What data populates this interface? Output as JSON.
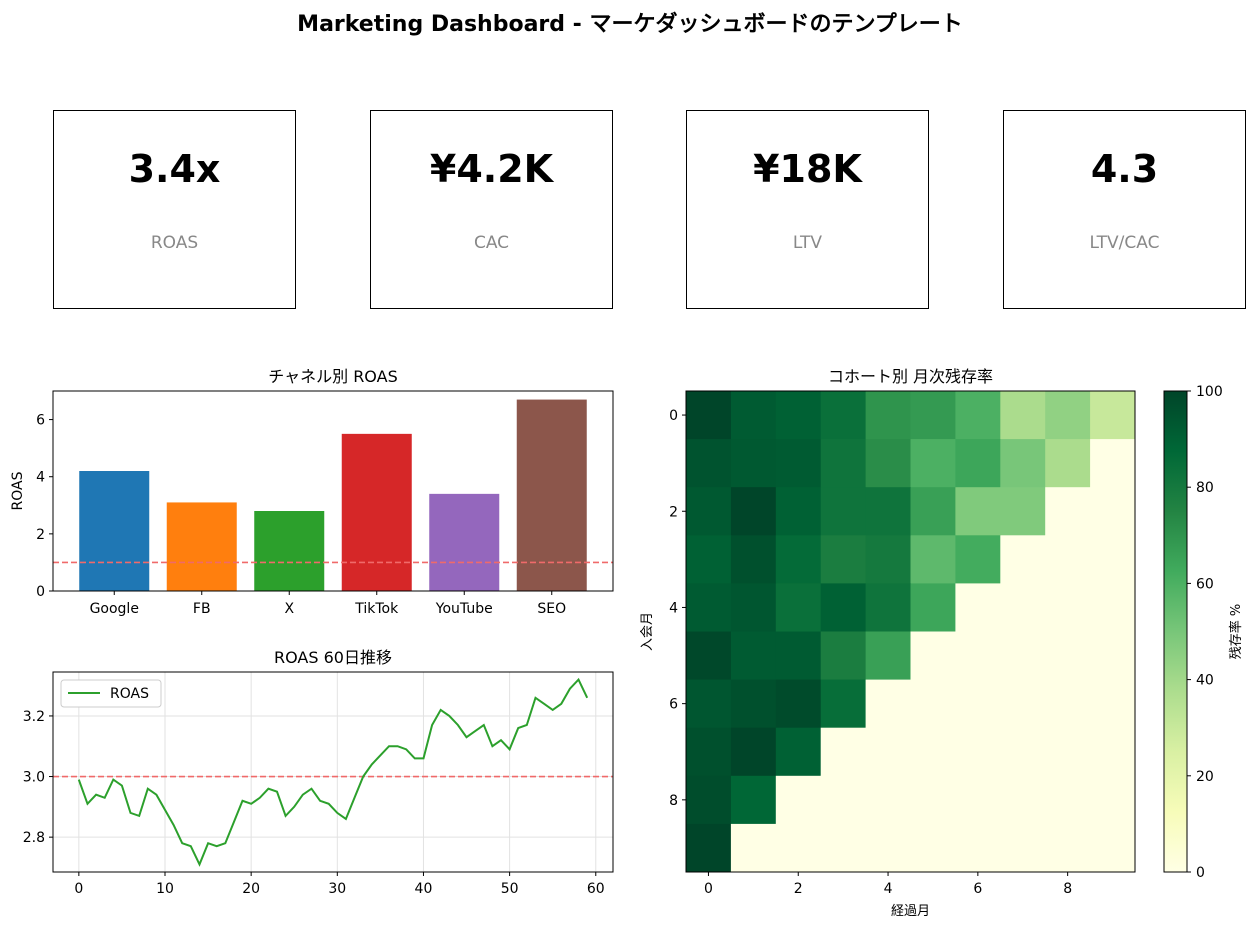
{
  "title": "Marketing Dashboard - マーケダッシュボードのテンプレート",
  "kpis": [
    {
      "value": "3.4x",
      "label": "ROAS"
    },
    {
      "value": "¥4.2K",
      "label": "CAC"
    },
    {
      "value": "¥18K",
      "label": "LTV"
    },
    {
      "value": "4.3",
      "label": "LTV/CAC"
    }
  ],
  "chart_data": [
    {
      "type": "bar",
      "title": "チャネル別 ROAS",
      "xlabel": "",
      "ylabel": "ROAS",
      "categories": [
        "Google",
        "FB",
        "X",
        "TikTok",
        "YouTube",
        "SEO"
      ],
      "values": [
        4.2,
        3.1,
        2.8,
        5.5,
        3.4,
        6.7
      ],
      "colors": [
        "#1f77b4",
        "#ff7f0e",
        "#2ca02c",
        "#d62728",
        "#9467bd",
        "#8c564b"
      ],
      "ylim": [
        0,
        7
      ],
      "yticks": [
        0,
        2,
        4,
        6
      ],
      "reference_line": {
        "y": 1.0,
        "color": "#f06a6a",
        "style": "dashed"
      }
    },
    {
      "type": "line",
      "title": "ROAS 60日推移",
      "xlabel": "",
      "ylabel": "",
      "series": [
        {
          "name": "ROAS",
          "color": "#2ca02c",
          "values": [
            2.99,
            2.91,
            2.94,
            2.93,
            2.99,
            2.97,
            2.88,
            2.87,
            2.96,
            2.94,
            2.89,
            2.84,
            2.78,
            2.77,
            2.71,
            2.78,
            2.77,
            2.78,
            2.85,
            2.92,
            2.91,
            2.93,
            2.96,
            2.95,
            2.87,
            2.9,
            2.94,
            2.96,
            2.92,
            2.91,
            2.88,
            2.86,
            2.93,
            3.0,
            3.04,
            3.07,
            3.1,
            3.1,
            3.09,
            3.06,
            3.06,
            3.17,
            3.22,
            3.2,
            3.17,
            3.13,
            3.15,
            3.17,
            3.1,
            3.12,
            3.09,
            3.16,
            3.17,
            3.26,
            3.24,
            3.22,
            3.24,
            3.29,
            3.32,
            3.26
          ]
        }
      ],
      "x_start": 0,
      "xlim": [
        -3,
        62
      ],
      "ylim": [
        2.685,
        3.345
      ],
      "xticks": [
        0,
        10,
        20,
        30,
        40,
        50,
        60
      ],
      "yticks": [
        2.8,
        3.0,
        3.2
      ],
      "ytick_format": "0.0",
      "grid": true,
      "legend": "top-left",
      "reference_line": {
        "y": 3.0,
        "color": "#f06a6a",
        "style": "dashed"
      }
    },
    {
      "type": "heatmap",
      "title": "コホート別 月次残存率",
      "xlabel": "経過月",
      "ylabel": "入会月",
      "colorbar_label": "残存率 %",
      "colorbar_ticks": [
        0,
        20,
        40,
        60,
        80,
        100
      ],
      "vmin": 0,
      "vmax": 100,
      "xticks": [
        0,
        2,
        4,
        6,
        8
      ],
      "yticks": [
        0,
        2,
        4,
        6,
        8
      ],
      "colormap": "YlGn",
      "matrix": [
        [
          100,
          92,
          90,
          84,
          70,
          68,
          60,
          38,
          44,
          30
        ],
        [
          95,
          93,
          92,
          82,
          72,
          60,
          64,
          50,
          38,
          0
        ],
        [
          93,
          100,
          90,
          82,
          82,
          66,
          48,
          48,
          0,
          0
        ],
        [
          90,
          96,
          86,
          78,
          80,
          56,
          62,
          0,
          0,
          0
        ],
        [
          92,
          94,
          84,
          90,
          82,
          64,
          0,
          0,
          0,
          0
        ],
        [
          99,
          92,
          92,
          78,
          66,
          0,
          0,
          0,
          0,
          0
        ],
        [
          94,
          96,
          98,
          85,
          0,
          0,
          0,
          0,
          0,
          0
        ],
        [
          96,
          100,
          90,
          0,
          0,
          0,
          0,
          0,
          0,
          0
        ],
        [
          97,
          88,
          0,
          0,
          0,
          0,
          0,
          0,
          0,
          0
        ],
        [
          100,
          0,
          0,
          0,
          0,
          0,
          0,
          0,
          0,
          0
        ]
      ]
    }
  ]
}
